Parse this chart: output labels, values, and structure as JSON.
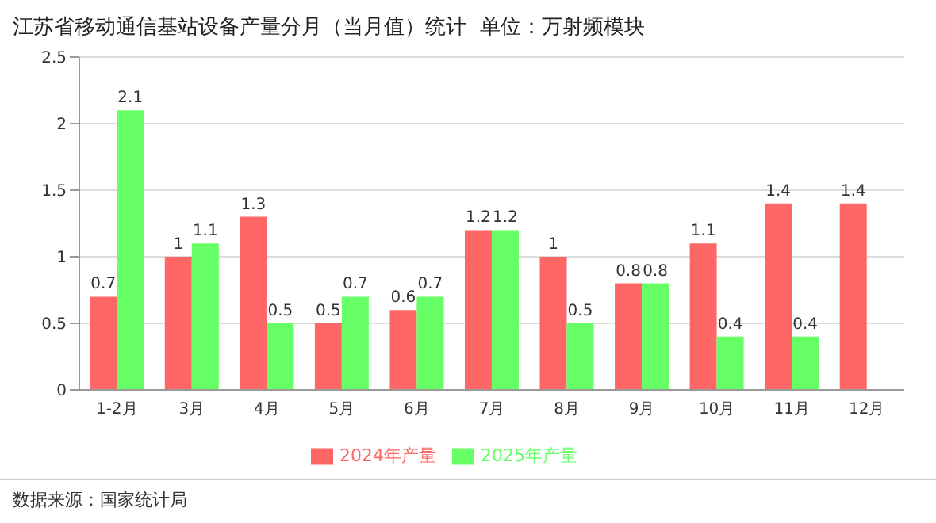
{
  "chart_data": {
    "type": "bar",
    "title": "江苏省移动通信基站设备产量分月（当月值）统计  单位：万射频模块",
    "categories": [
      "1-2月",
      "3月",
      "4月",
      "5月",
      "6月",
      "7月",
      "8月",
      "9月",
      "10月",
      "11月",
      "12月"
    ],
    "series": [
      {
        "name": "2024年产量",
        "color": "#ff6666",
        "values": [
          0.7,
          1,
          1.3,
          0.5,
          0.6,
          1.2,
          1,
          0.8,
          1.1,
          1.4,
          1.4
        ]
      },
      {
        "name": "2025年产量",
        "color": "#66ff66",
        "values": [
          2.1,
          1.1,
          0.5,
          0.7,
          0.7,
          1.2,
          0.5,
          0.8,
          0.4,
          0.4,
          null
        ]
      }
    ],
    "ylim": [
      0,
      2.5
    ],
    "yticks": [
      0,
      0.5,
      1,
      1.5,
      2,
      2.5
    ],
    "grid": "y",
    "legend": "bottom",
    "data_labels": true,
    "annotations": [
      "数据来源：国家统计局"
    ]
  }
}
